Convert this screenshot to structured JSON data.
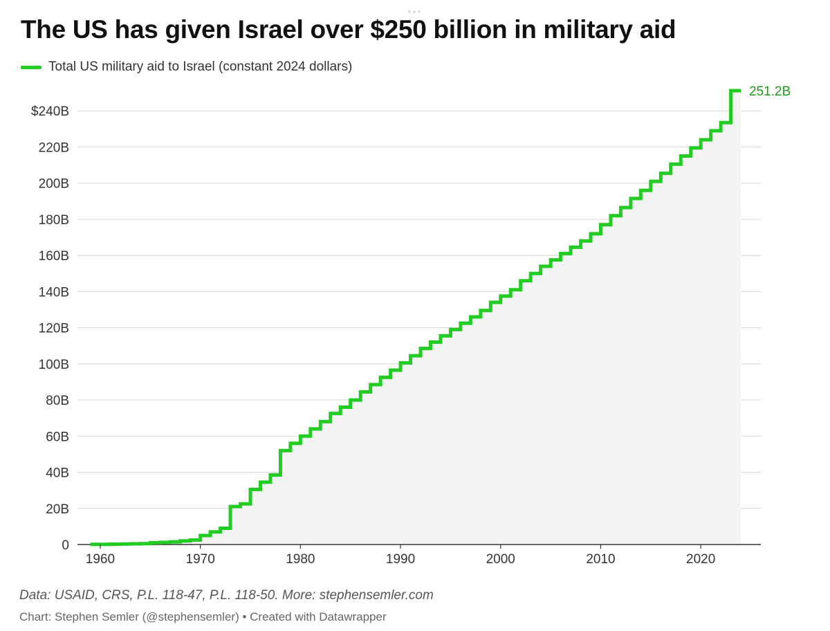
{
  "chart_data": {
    "type": "area",
    "step": true,
    "title": "The US has given Israel over $250 billion in military aid",
    "series": [
      {
        "name": "Total US military aid to Israel (constant 2024 dollars)",
        "color": "#22cc22",
        "x": [
          1959,
          1960,
          1961,
          1962,
          1963,
          1964,
          1965,
          1966,
          1967,
          1968,
          1969,
          1970,
          1971,
          1972,
          1973,
          1974,
          1975,
          1976,
          1977,
          1978,
          1979,
          1980,
          1981,
          1982,
          1983,
          1984,
          1985,
          1986,
          1987,
          1988,
          1989,
          1990,
          1991,
          1992,
          1993,
          1994,
          1995,
          1996,
          1997,
          1998,
          1999,
          2000,
          2001,
          2002,
          2003,
          2004,
          2005,
          2006,
          2007,
          2008,
          2009,
          2010,
          2011,
          2012,
          2013,
          2014,
          2015,
          2016,
          2017,
          2018,
          2019,
          2020,
          2021,
          2022,
          2023,
          2024
        ],
        "y": [
          0.1,
          0.1,
          0.2,
          0.3,
          0.4,
          0.5,
          1.0,
          1.2,
          1.5,
          2.0,
          2.5,
          5.0,
          7.0,
          9.0,
          21.0,
          22.5,
          30.5,
          34.5,
          38.5,
          52.0,
          56.0,
          60.0,
          64.0,
          68.0,
          72.5,
          76.0,
          80.0,
          84.5,
          88.5,
          92.5,
          96.5,
          100.5,
          104.5,
          108.5,
          112.0,
          115.5,
          119.0,
          122.5,
          126.0,
          129.5,
          134.0,
          137.5,
          141.0,
          146.0,
          150.0,
          154.0,
          157.5,
          161.0,
          164.5,
          168.0,
          172.0,
          177.0,
          182.0,
          186.5,
          191.5,
          196.0,
          201.0,
          205.5,
          210.5,
          215.0,
          219.5,
          224.0,
          229.0,
          233.5,
          251.2,
          251.2
        ]
      }
    ],
    "end_label": "251.2B",
    "xlim": [
      1958,
      2026
    ],
    "ylim": [
      0,
      250
    ],
    "x_ticks": [
      1960,
      1970,
      1980,
      1990,
      2000,
      2010,
      2020
    ],
    "y_ticks": [
      0,
      20,
      40,
      60,
      80,
      100,
      120,
      140,
      160,
      180,
      200,
      220,
      240
    ],
    "y_tick_labels": [
      "0",
      "20B",
      "40B",
      "60B",
      "80B",
      "100B",
      "120B",
      "140B",
      "160B",
      "180B",
      "200B",
      "220B",
      "$240B"
    ],
    "grid": true,
    "legend_position": "top-left",
    "area_color": "#f3f3f3",
    "notes": "Data: USAID, CRS, P.L. 118-47, P.L. 118-50. More: stephensemler.com",
    "credit": "Chart: Stephen Semler (@stephensemler) • Created with Datawrapper"
  }
}
